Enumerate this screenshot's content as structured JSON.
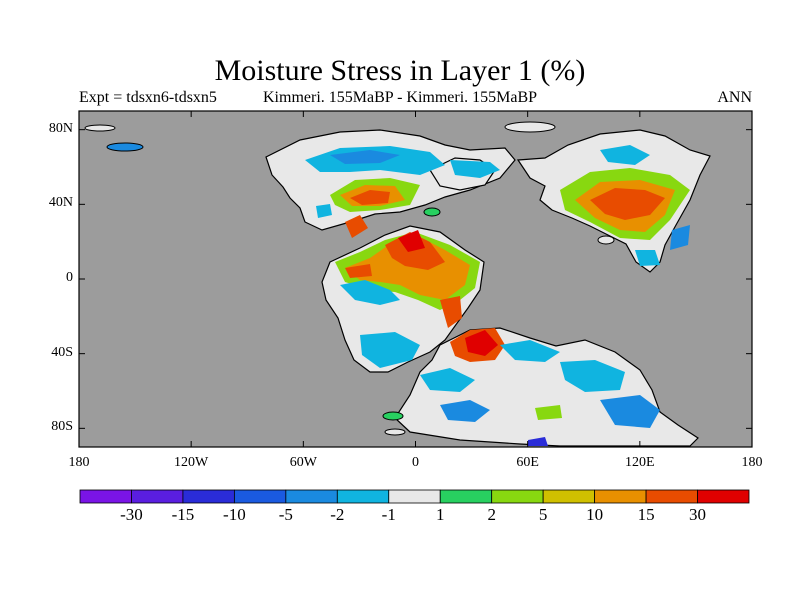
{
  "title": "Moisture Stress in Layer 1 (%)",
  "subtitle_left": "Expt = tdsxn6-tdsxn5",
  "subtitle_center": "Kimmeri. 155MaBP - Kimmeri. 155MaBP",
  "subtitle_right": "ANN",
  "colors": {
    "ocean": "#9c9c9c",
    "land_neutral": "#e8e8e8",
    "coastline": "#000000"
  },
  "map": {
    "projection": "cylindrical equidistant",
    "lon_range": [
      -180,
      180
    ],
    "lat_range": [
      -90,
      90
    ],
    "y_ticks": [
      {
        "lat": 80,
        "label": "80N"
      },
      {
        "lat": 40,
        "label": "40N"
      },
      {
        "lat": 0,
        "label": "0"
      },
      {
        "lat": -40,
        "label": "40S"
      },
      {
        "lat": -80,
        "label": "80S"
      }
    ],
    "x_ticks": [
      {
        "lon": -180,
        "label": "180"
      },
      {
        "lon": -120,
        "label": "120W"
      },
      {
        "lon": -60,
        "label": "60W"
      },
      {
        "lon": 0,
        "label": "0"
      },
      {
        "lon": 60,
        "label": "60E"
      },
      {
        "lon": 120,
        "label": "120E"
      },
      {
        "lon": 180,
        "label": "180"
      }
    ]
  },
  "colorbar": {
    "colors": [
      "#7a14e6",
      "#5a1ee0",
      "#2a2cd8",
      "#1a5ae0",
      "#1a8ae0",
      "#10b4e0",
      "#e8e8e8",
      "#28d060",
      "#88d810",
      "#d0c000",
      "#e89000",
      "#e84c00",
      "#e00000"
    ],
    "labels": [
      "-30",
      "-15",
      "-10",
      "-5",
      "-2",
      "-1",
      "1",
      "2",
      "5",
      "10",
      "15",
      "30"
    ]
  }
}
